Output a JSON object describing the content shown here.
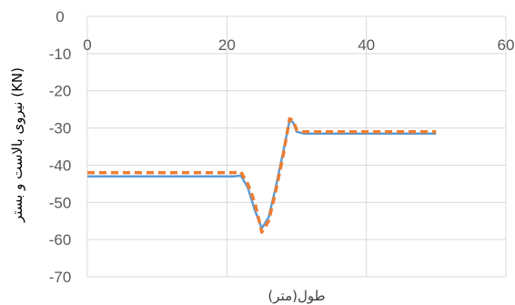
{
  "chart_data": {
    "type": "line",
    "title": "",
    "xlabel": "طول(متر)",
    "ylabel": "نیروی بالاست و بستر (KN)",
    "xlim": [
      0,
      60
    ],
    "ylim": [
      -70,
      0
    ],
    "x_ticks": [
      "0",
      "20",
      "40",
      "60"
    ],
    "y_ticks": [
      "0",
      "-10",
      "-20",
      "-30",
      "-40",
      "-50",
      "-60",
      "-70"
    ],
    "grid": true,
    "legend": "none",
    "series": [
      {
        "color": "#5B9BD5",
        "style": "solid",
        "points": [
          [
            0,
            -43
          ],
          [
            21,
            -43
          ],
          [
            22,
            -42.8
          ],
          [
            23,
            -46
          ],
          [
            24,
            -52
          ],
          [
            25,
            -57
          ],
          [
            26,
            -54
          ],
          [
            27,
            -46
          ],
          [
            28,
            -37
          ],
          [
            29,
            -28
          ],
          [
            29.5,
            -28.5
          ],
          [
            30,
            -31
          ],
          [
            31,
            -31.5
          ],
          [
            40,
            -31.5
          ],
          [
            50,
            -31.5
          ]
        ]
      },
      {
        "color": "#ED7D31",
        "style": "dashed",
        "points": [
          [
            0,
            -42
          ],
          [
            21,
            -42
          ],
          [
            22,
            -41.8
          ],
          [
            23,
            -45
          ],
          [
            24,
            -50
          ],
          [
            25,
            -58
          ],
          [
            26,
            -55
          ],
          [
            27,
            -47
          ],
          [
            28,
            -38
          ],
          [
            29,
            -27.5
          ],
          [
            29.5,
            -28
          ],
          [
            30,
            -30.5
          ],
          [
            31,
            -31
          ],
          [
            40,
            -31
          ],
          [
            50,
            -31
          ]
        ]
      }
    ]
  }
}
